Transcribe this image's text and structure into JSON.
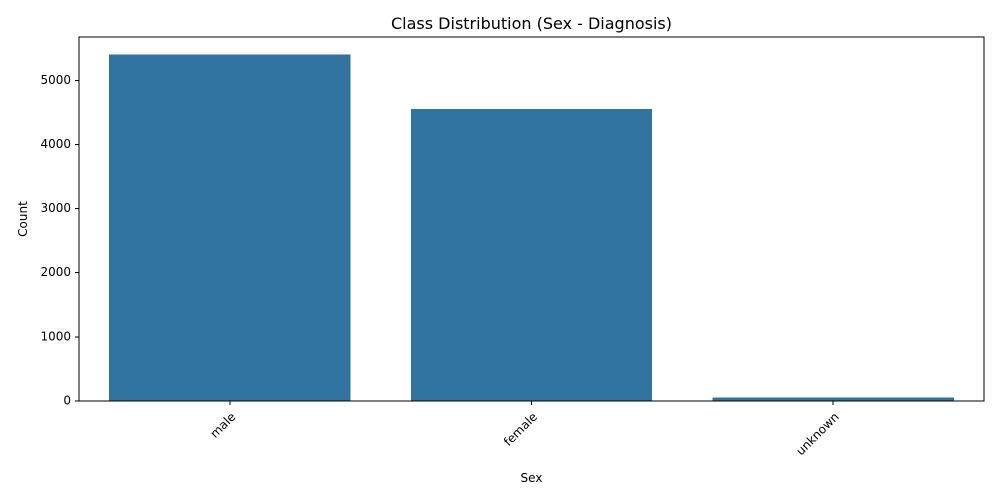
{
  "chart_data": {
    "type": "bar",
    "title": "Class Distribution (Sex - Diagnosis)",
    "xlabel": "Sex",
    "ylabel": "Count",
    "categories": [
      "male",
      "female",
      "unknown"
    ],
    "values": [
      5406,
      4552,
      57
    ],
    "ylim": [
      0,
      5676
    ],
    "yticks": [
      0,
      1000,
      2000,
      3000,
      4000,
      5000
    ],
    "grid": false,
    "legend": "none",
    "x_tick_rotation_deg": 45,
    "colors": {
      "bar": "#3274a1",
      "axis": "#000000",
      "background": "#ffffff"
    }
  }
}
